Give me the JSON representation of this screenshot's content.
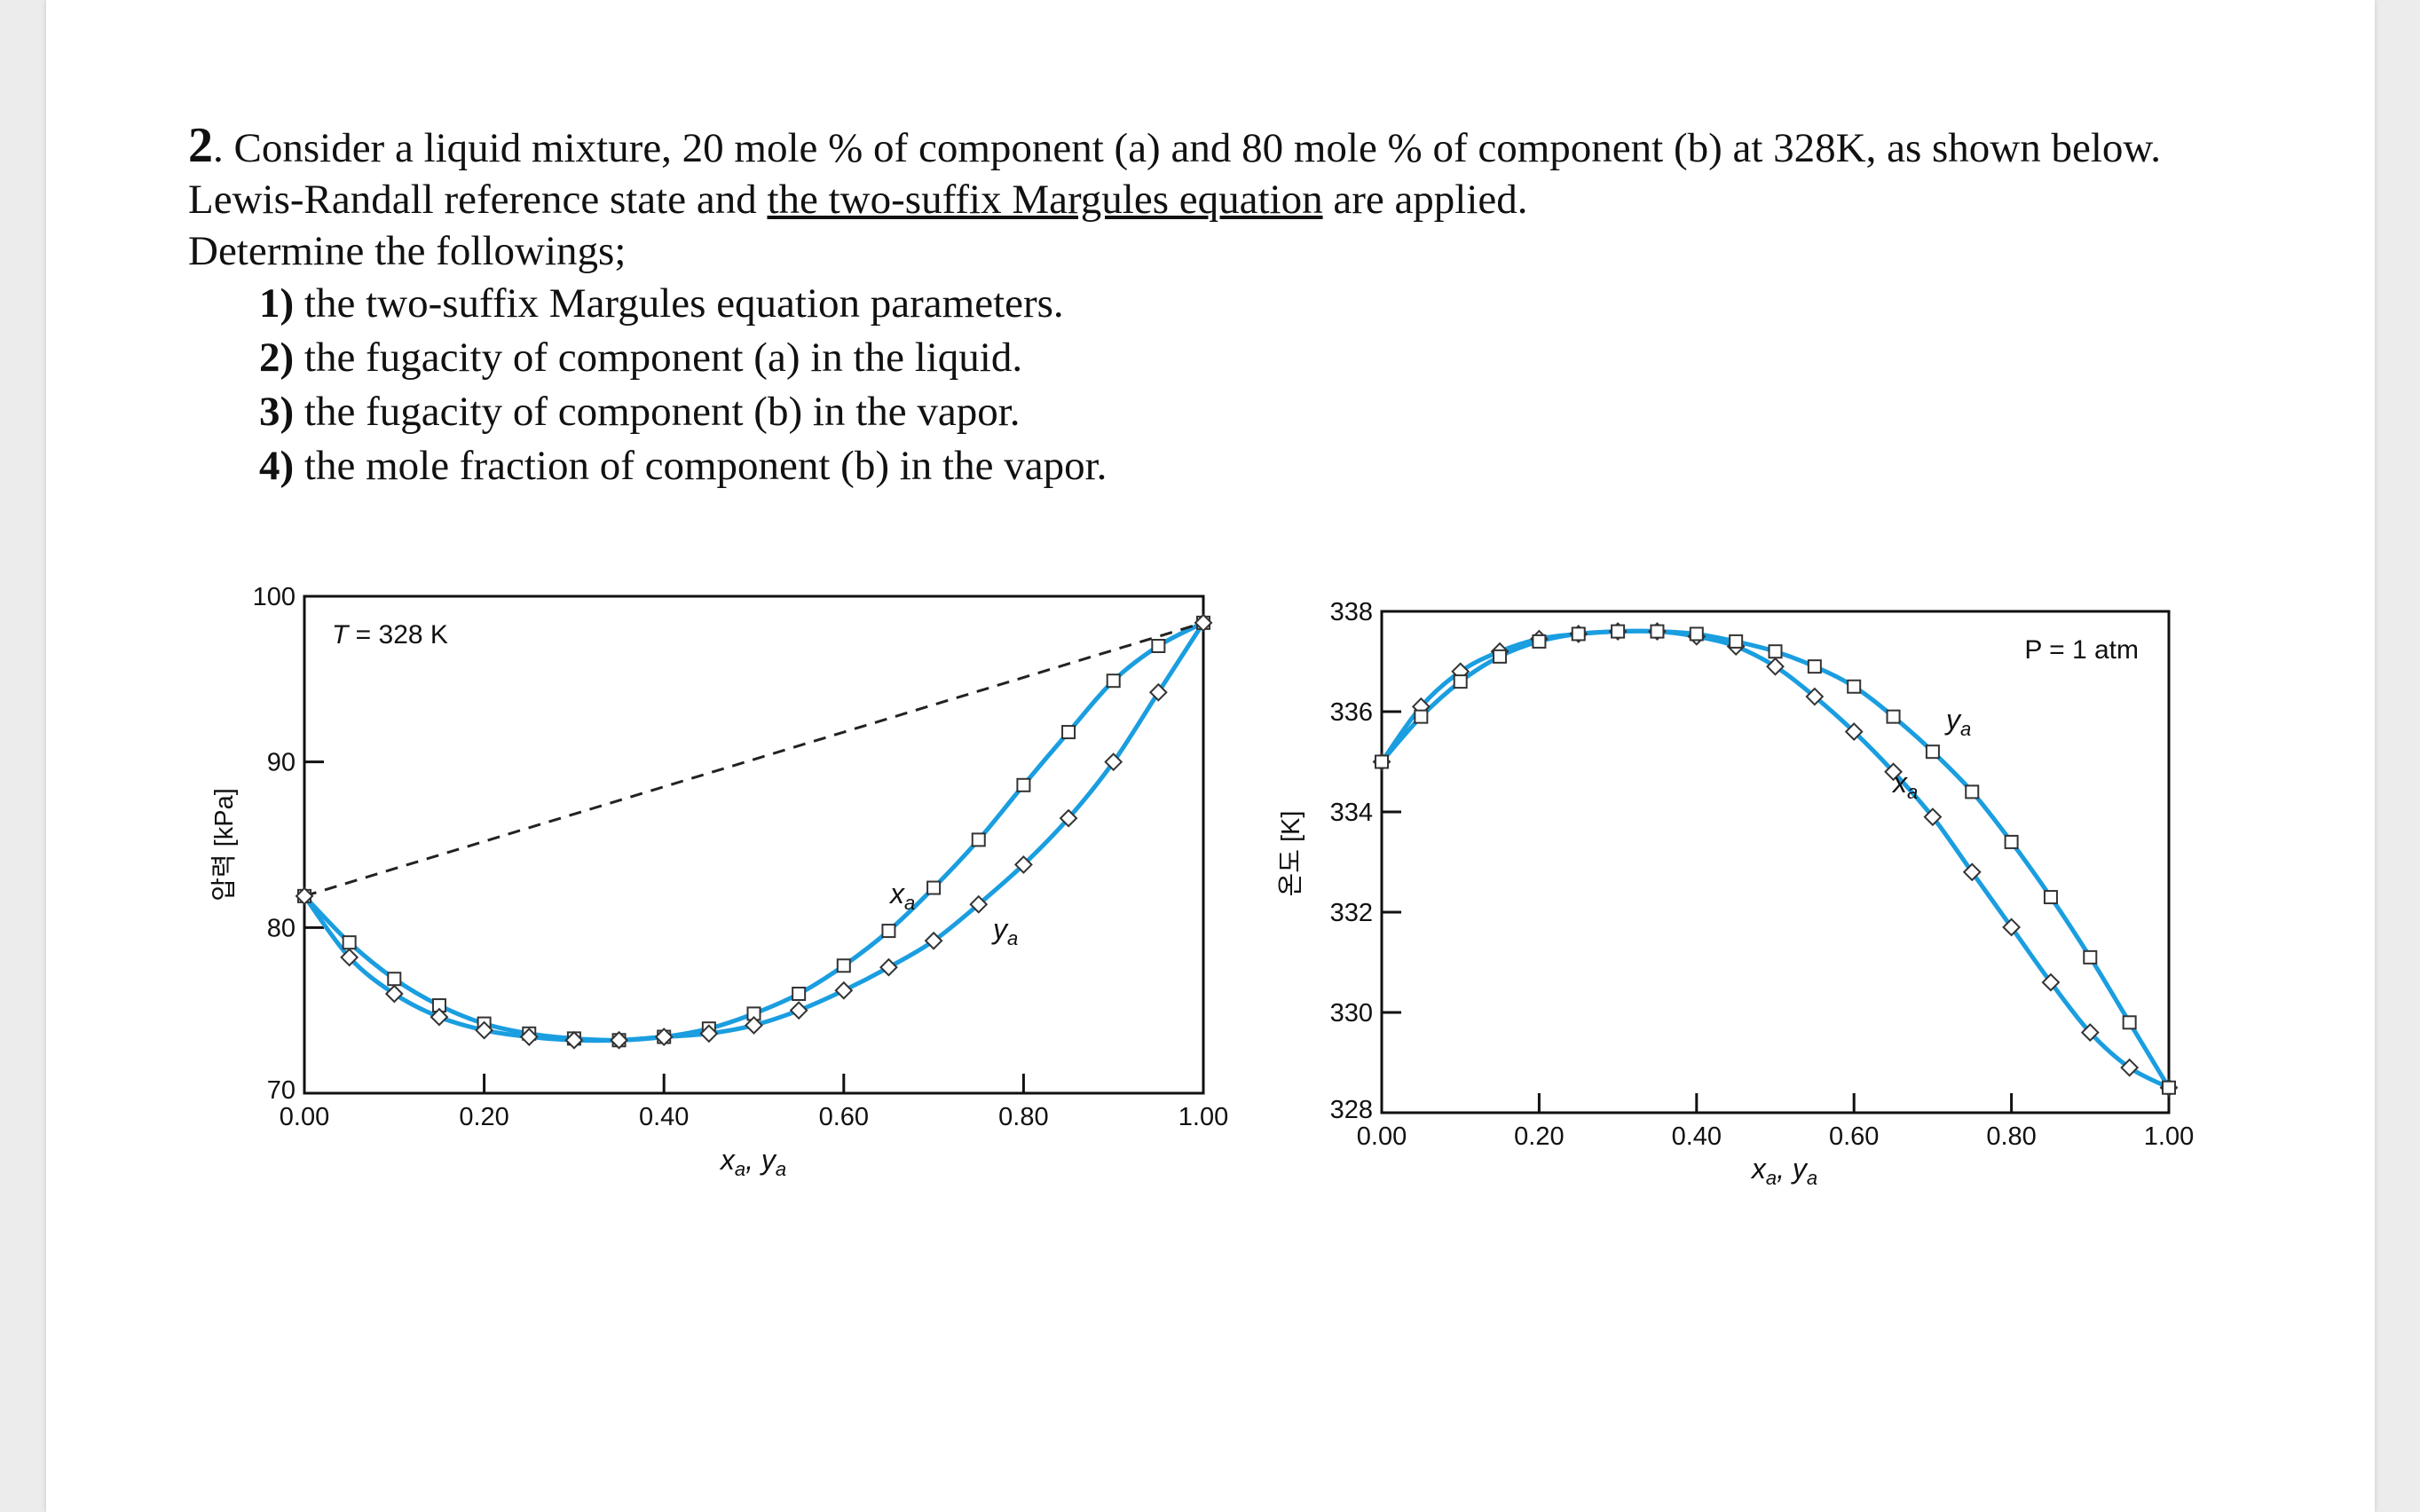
{
  "question": {
    "number": "2",
    "intro_pre": "Consider a liquid mixture, 20 mole % of component (a) and 80 mole % of component (b) at 328K, as shown below.",
    "line2_pre": "Lewis-Randall reference state and ",
    "line2_underline": "the two-suffix Margules equation",
    "line2_post": " are applied.",
    "line3": "Determine the followings;",
    "items": [
      {
        "num": "1)",
        "text": "the two-suffix Margules equation parameters."
      },
      {
        "num": "2)",
        "text": "the fugacity of component (a) in the liquid."
      },
      {
        "num": "3)",
        "text": "the fugacity of component (b) in the vapor."
      },
      {
        "num": "4)",
        "text": "the mole fraction of component (b) in the vapor."
      }
    ]
  },
  "chart_data": [
    {
      "type": "line",
      "ylabel": "압력 [kPa]",
      "xlabel_x": "x",
      "xlabel_x_sub": "a",
      "xlabel_sep": ", ",
      "xlabel_y": "y",
      "xlabel_y_sub": "a",
      "annotation_T_var": "T",
      "annotation_T_rest": " = 328 K",
      "label_x": "x",
      "label_y": "y",
      "label_sub": "a",
      "xlim": [
        0,
        1
      ],
      "ylim": [
        70,
        100
      ],
      "xticks": [
        0,
        0.2,
        0.4,
        0.6,
        0.8,
        1.0
      ],
      "xtick_labels": [
        "0.00",
        "0.20",
        "0.40",
        "0.60",
        "0.80",
        "1.00"
      ],
      "yticks": [
        70,
        80,
        90,
        100
      ],
      "ytick_labels": [
        "70",
        "80",
        "90",
        "100"
      ],
      "series": [
        {
          "name": "x_a (bubble curve)",
          "marker": "square",
          "x": [
            0.0,
            0.05,
            0.1,
            0.15,
            0.2,
            0.25,
            0.3,
            0.35,
            0.4,
            0.45,
            0.5,
            0.55,
            0.6,
            0.65,
            0.7,
            0.75,
            0.8,
            0.85,
            0.9,
            0.95,
            1.0
          ],
          "y": [
            81.9,
            79.1,
            76.9,
            75.3,
            74.2,
            73.6,
            73.3,
            73.2,
            73.4,
            73.9,
            74.8,
            76.0,
            77.7,
            79.8,
            82.4,
            85.3,
            88.6,
            91.8,
            94.9,
            97.0,
            98.4
          ]
        },
        {
          "name": "y_a (dew curve)",
          "marker": "diamond",
          "x": [
            0.0,
            0.05,
            0.1,
            0.15,
            0.2,
            0.25,
            0.3,
            0.35,
            0.4,
            0.45,
            0.5,
            0.55,
            0.6,
            0.65,
            0.7,
            0.75,
            0.8,
            0.85,
            0.9,
            0.95,
            1.0
          ],
          "y": [
            81.9,
            78.2,
            76.0,
            74.6,
            73.8,
            73.4,
            73.2,
            73.2,
            73.4,
            73.6,
            74.1,
            75.0,
            76.2,
            77.6,
            79.2,
            81.4,
            83.8,
            86.6,
            90.0,
            94.2,
            98.4
          ]
        },
        {
          "name": "Raoult's law (ideal)",
          "style": "dashed",
          "x": [
            0.0,
            1.0
          ],
          "y": [
            81.9,
            98.4
          ]
        }
      ]
    },
    {
      "type": "line",
      "ylabel": "온도 [K]",
      "xlabel_x": "x",
      "xlabel_x_sub": "a",
      "xlabel_sep": ", ",
      "xlabel_y": "y",
      "xlabel_y_sub": "a",
      "annotation_P": "P = 1 atm",
      "label_x": "x",
      "label_y": "y",
      "label_sub": "a",
      "xlim": [
        0,
        1
      ],
      "ylim": [
        328,
        338
      ],
      "xticks": [
        0,
        0.2,
        0.4,
        0.6,
        0.8,
        1.0
      ],
      "xtick_labels": [
        "0.00",
        "0.20",
        "0.40",
        "0.60",
        "0.80",
        "1.00"
      ],
      "yticks": [
        328,
        330,
        332,
        334,
        336,
        338
      ],
      "ytick_labels": [
        "328",
        "330",
        "332",
        "334",
        "336",
        "338"
      ],
      "series": [
        {
          "name": "x_a (bubble curve)",
          "marker": "diamond",
          "x": [
            0.0,
            0.05,
            0.1,
            0.15,
            0.2,
            0.25,
            0.3,
            0.35,
            0.4,
            0.45,
            0.5,
            0.55,
            0.6,
            0.65,
            0.7,
            0.75,
            0.8,
            0.85,
            0.9,
            0.95,
            1.0
          ],
          "y": [
            335.0,
            336.1,
            336.8,
            337.2,
            337.45,
            337.55,
            337.6,
            337.6,
            337.5,
            337.3,
            336.9,
            336.3,
            335.6,
            334.8,
            333.9,
            332.8,
            331.7,
            330.6,
            329.6,
            328.9,
            328.5
          ]
        },
        {
          "name": "y_a (dew curve)",
          "marker": "square",
          "x": [
            0.0,
            0.05,
            0.1,
            0.15,
            0.2,
            0.25,
            0.3,
            0.35,
            0.4,
            0.45,
            0.5,
            0.55,
            0.6,
            0.65,
            0.7,
            0.75,
            0.8,
            0.85,
            0.9,
            0.95,
            1.0
          ],
          "y": [
            335.0,
            335.9,
            336.6,
            337.1,
            337.4,
            337.55,
            337.6,
            337.6,
            337.55,
            337.4,
            337.2,
            336.9,
            336.5,
            335.9,
            335.2,
            334.4,
            333.4,
            332.3,
            331.1,
            329.8,
            328.5
          ]
        }
      ]
    }
  ]
}
